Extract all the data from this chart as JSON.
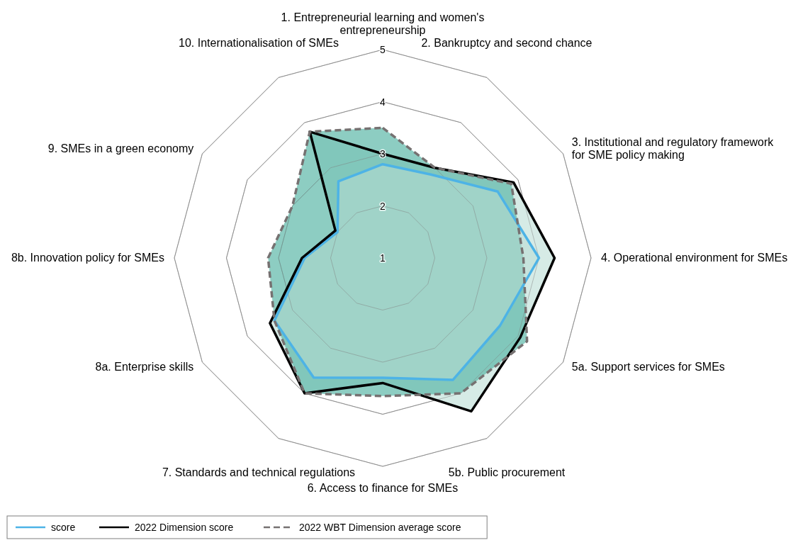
{
  "chart_data": {
    "type": "radar",
    "categories": [
      "1. Entrepreneurial learning and women's entrepreneurship",
      "2. Bankruptcy and second chance",
      "3. Institutional and regulatory framework for SME policy making",
      "4. Operational environment for SMEs",
      "5a. Support services for SMEs",
      "5b. Public procurement",
      "6. Access to finance for SMEs",
      "7. Standards and technical regulations",
      "8a. Enterprise skills",
      "8b. Innovation policy for SMEs",
      "9. SMEs in a green economy",
      "10. Internationalisation of SMEs"
    ],
    "series": [
      {
        "name": "score",
        "color": "#4db3e6",
        "line_style": "solid",
        "values": [
          2.8,
          2.85,
          3.55,
          4.0,
          3.6,
          3.7,
          3.3,
          3.65,
          3.4,
          2.5,
          2.0,
          2.7
        ]
      },
      {
        "name": "2022 Dimension score",
        "color": "#000000",
        "line_style": "solid",
        "values": [
          3.0,
          3.0,
          3.9,
          4.3,
          4.05,
          4.4,
          3.4,
          4.0,
          3.5,
          2.55,
          2.05,
          3.8
        ]
      },
      {
        "name": "2022 WBT Dimension average score",
        "color": "#767171",
        "line_style": "dashed",
        "values": [
          3.5,
          3.0,
          3.85,
          3.7,
          4.2,
          4.0,
          3.65,
          4.0,
          3.4,
          3.2,
          3.0,
          3.8
        ]
      }
    ],
    "ylim": [
      1,
      5
    ],
    "yticks": [
      1,
      2,
      3,
      4,
      5
    ],
    "grid": true,
    "legend": "bottom",
    "marker": "none"
  }
}
